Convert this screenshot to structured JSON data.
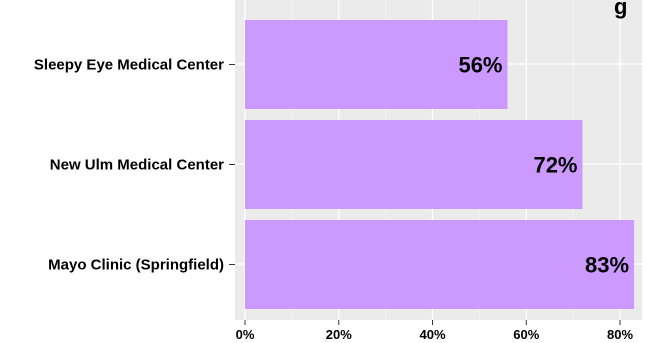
{
  "chart_data": {
    "type": "bar",
    "orientation": "horizontal",
    "categories": [
      "Sleepy Eye Medical Center",
      "New Ulm Medical Center",
      "Mayo Clinic (Springfield)"
    ],
    "values": [
      56,
      72,
      83
    ],
    "data_labels": [
      "56%",
      "72%",
      "83%"
    ],
    "xlim": [
      0,
      85
    ],
    "xticks": [
      0,
      20,
      40,
      60,
      80
    ],
    "xtick_labels": [
      "0%",
      "20%",
      "40%",
      "60%",
      "80%"
    ],
    "bar_color": "#cc99ff",
    "panel_color": "#ebebeb",
    "grid": true,
    "legend": "none"
  }
}
